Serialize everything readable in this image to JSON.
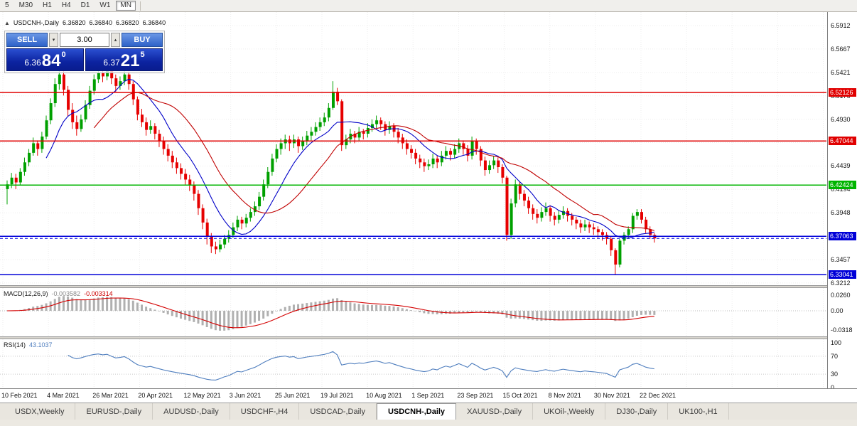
{
  "toolbar": {
    "timeframes": [
      {
        "label": "5",
        "active": false
      },
      {
        "label": "M30",
        "active": false
      },
      {
        "label": "H1",
        "active": false
      },
      {
        "label": "H4",
        "active": false
      },
      {
        "label": "D1",
        "active": false
      },
      {
        "label": "W1",
        "active": false
      },
      {
        "label": "MN",
        "active": true
      }
    ]
  },
  "chart": {
    "info_bar": {
      "symbol": "USDCNH-,Daily",
      "open": "6.36820",
      "high": "6.36840",
      "low": "6.36820",
      "close": "6.36840"
    },
    "trade_panel": {
      "sell_label": "SELL",
      "buy_label": "BUY",
      "lot_value": "3.00",
      "spin_up": "▴",
      "spin_down": "▾",
      "sell_price": {
        "prefix": "6.36",
        "big": "84",
        "sup": "0"
      },
      "buy_price": {
        "prefix": "6.37",
        "big": "21",
        "sup": "5"
      }
    },
    "price_axis_labels": [
      "6.5912",
      "6.5667",
      "6.5421",
      "6.5176",
      "6.4930",
      "6.4685",
      "6.4439",
      "6.4194",
      "6.3948",
      "6.3703",
      "6.3457",
      "6.3212"
    ],
    "level_badges": [
      {
        "label": "6.52126",
        "price": 6.5212,
        "color": "#e00000"
      },
      {
        "label": "6.47044",
        "price": 6.4704,
        "color": "#e00000"
      },
      {
        "label": "6.42424",
        "price": 6.4242,
        "color": "#00b400"
      },
      {
        "label": "6.37063",
        "price": 6.3706,
        "color": "#0000d8"
      },
      {
        "label": "6.33041",
        "price": 6.3304,
        "color": "#0000d8"
      }
    ],
    "date_axis_labels": [
      "10 Feb 2021",
      "4 Mar 2021",
      "26 Mar 2021",
      "20 Apr 2021",
      "12 May 2021",
      "3 Jun 2021",
      "25 Jun 2021",
      "19 Jul 2021",
      "10 Aug 2021",
      "1 Sep 2021",
      "23 Sep 2021",
      "15 Oct 2021",
      "8 Nov 2021",
      "30 Nov 2021",
      "22 Dec 2021"
    ]
  },
  "indicators": {
    "macd": {
      "name": "MACD(12,26,9)",
      "value_main": "-0.003582",
      "value_signal": "-0.003314",
      "axis_labels": [
        "0.0260",
        "0.00",
        "-0.0318"
      ]
    },
    "rsi": {
      "name": "RSI(14)",
      "value": "43.1037",
      "axis_labels": [
        "100",
        "70",
        "30",
        "0"
      ],
      "levels": [
        70,
        30
      ]
    }
  },
  "tabs": [
    {
      "label": "USDX,Weekly",
      "active": false
    },
    {
      "label": "EURUSD-,Daily",
      "active": false
    },
    {
      "label": "AUDUSD-,Daily",
      "active": false
    },
    {
      "label": "USDCHF-,H4",
      "active": false
    },
    {
      "label": "USDCAD-,Daily",
      "active": false
    },
    {
      "label": "USDCNH-,Daily",
      "active": true
    },
    {
      "label": "XAUUSD-,Daily",
      "active": false
    },
    {
      "label": "UKOil-,Weekly",
      "active": false
    },
    {
      "label": "DJ30-,Daily",
      "active": false
    },
    {
      "label": "UK100-,H1",
      "active": false
    }
  ],
  "colors": {
    "candle_up": "#00a000",
    "candle_down": "#e60000",
    "ma_fast": "#0000c8",
    "ma_slow": "#c00000",
    "macd_histogram": "#b0b0b0",
    "macd_signal": "#d40000",
    "rsi_line": "#4f7ebe",
    "bid_line": "#0000e0",
    "level_red": "#e00000",
    "level_green": "#00b400",
    "level_blue": "#0000d8",
    "trade_button_blue": "#2e62c8",
    "trade_price_bg": "#0c23a0"
  },
  "chart_data": {
    "type": "candlestick",
    "symbol": "USDCNH",
    "timeframe": "Daily",
    "title": "USDCNH-,Daily",
    "y_axis_ticks": [
      6.5912,
      6.5667,
      6.5421,
      6.5176,
      6.493,
      6.4685,
      6.4439,
      6.4194,
      6.3948,
      6.3703,
      6.3457,
      6.3212
    ],
    "x_tick_labels": [
      "10 Feb 2021",
      "4 Mar 2021",
      "26 Mar 2021",
      "20 Apr 2021",
      "12 May 2021",
      "3 Jun 2021",
      "25 Jun 2021",
      "19 Jul 2021",
      "10 Aug 2021",
      "1 Sep 2021",
      "23 Sep 2021",
      "15 Oct 2021",
      "8 Nov 2021",
      "30 Nov 2021",
      "22 Dec 2021"
    ],
    "horizontal_levels": [
      {
        "price": 6.5212,
        "color": "#e00000"
      },
      {
        "price": 6.4704,
        "color": "#e00000"
      },
      {
        "price": 6.4242,
        "color": "#00b400"
      },
      {
        "price": 6.3706,
        "color": "#0000d8"
      },
      {
        "price": 6.3304,
        "color": "#0000d8"
      }
    ],
    "bid": 6.3684,
    "ask": 6.3721,
    "last_bar": {
      "open": 6.3682,
      "high": 6.3684,
      "low": 6.3682,
      "close": 6.3684
    },
    "overlays": [
      {
        "name": "ma-fast",
        "type": "sma",
        "period": 10,
        "color": "#0000c8"
      },
      {
        "name": "ma-slow",
        "type": "sma",
        "period": 21,
        "color": "#c00000"
      }
    ],
    "subcharts": [
      {
        "type": "macd",
        "params": [
          12,
          26,
          9
        ],
        "current_main": -0.003582,
        "current_signal": -0.003314,
        "axis": [
          0.026,
          0.0,
          -0.0318
        ]
      },
      {
        "type": "rsi",
        "period": 14,
        "current": 43.1037,
        "levels": [
          70,
          30
        ],
        "axis": [
          100,
          70,
          30,
          0
        ]
      }
    ],
    "candles_ohlc": [
      [
        6.42,
        6.429,
        6.404,
        6.425
      ],
      [
        6.425,
        6.437,
        6.421,
        6.432
      ],
      [
        6.432,
        6.436,
        6.42,
        6.427
      ],
      [
        6.427,
        6.442,
        6.424,
        6.438
      ],
      [
        6.438,
        6.453,
        6.434,
        6.448
      ],
      [
        6.448,
        6.462,
        6.444,
        6.458
      ],
      [
        6.458,
        6.474,
        6.455,
        6.468
      ],
      [
        6.468,
        6.471,
        6.455,
        6.462
      ],
      [
        6.462,
        6.48,
        6.458,
        6.475
      ],
      [
        6.475,
        6.497,
        6.472,
        6.492
      ],
      [
        6.492,
        6.515,
        6.488,
        6.51
      ],
      [
        6.51,
        6.536,
        6.506,
        6.53
      ],
      [
        6.53,
        6.5435,
        6.524,
        6.54
      ],
      [
        6.54,
        6.5445,
        6.518,
        6.524
      ],
      [
        6.524,
        6.528,
        6.496,
        6.503
      ],
      [
        6.503,
        6.51,
        6.483,
        6.49
      ],
      [
        6.49,
        6.497,
        6.476,
        6.483
      ],
      [
        6.483,
        6.498,
        6.48,
        6.493
      ],
      [
        6.493,
        6.513,
        6.49,
        6.508
      ],
      [
        6.508,
        6.528,
        6.504,
        6.523
      ],
      [
        6.523,
        6.54,
        6.519,
        6.535
      ],
      [
        6.535,
        6.547,
        6.531,
        6.542
      ],
      [
        6.542,
        6.545,
        6.532,
        6.538
      ],
      [
        6.538,
        6.549,
        6.534,
        6.545
      ],
      [
        6.545,
        6.547,
        6.53,
        6.536
      ],
      [
        6.536,
        6.54,
        6.522,
        6.528
      ],
      [
        6.528,
        6.538,
        6.524,
        6.533
      ],
      [
        6.533,
        6.545,
        6.529,
        6.54
      ],
      [
        6.54,
        6.543,
        6.524,
        6.53
      ],
      [
        6.53,
        6.533,
        6.508,
        6.514
      ],
      [
        6.514,
        6.517,
        6.492,
        6.498
      ],
      [
        6.498,
        6.504,
        6.485,
        6.49
      ],
      [
        6.49,
        6.495,
        6.476,
        6.482
      ],
      [
        6.482,
        6.492,
        6.478,
        6.486
      ],
      [
        6.486,
        6.489,
        6.472,
        6.478
      ],
      [
        6.478,
        6.482,
        6.464,
        6.47
      ],
      [
        6.47,
        6.475,
        6.456,
        6.462
      ],
      [
        6.462,
        6.467,
        6.449,
        6.455
      ],
      [
        6.455,
        6.46,
        6.442,
        6.448
      ],
      [
        6.448,
        6.453,
        6.436,
        6.442
      ],
      [
        6.442,
        6.447,
        6.43,
        6.436
      ],
      [
        6.436,
        6.441,
        6.424,
        6.43
      ],
      [
        6.43,
        6.435,
        6.418,
        6.424
      ],
      [
        6.424,
        6.428,
        6.408,
        6.415
      ],
      [
        6.415,
        6.419,
        6.393,
        6.4
      ],
      [
        6.4,
        6.404,
        6.378,
        6.385
      ],
      [
        6.385,
        6.389,
        6.362,
        6.37
      ],
      [
        6.37,
        6.374,
        6.353,
        6.36
      ],
      [
        6.36,
        6.365,
        6.352,
        6.357
      ],
      [
        6.357,
        6.367,
        6.354,
        6.362
      ],
      [
        6.362,
        6.372,
        6.358,
        6.368
      ],
      [
        6.368,
        6.377,
        6.364,
        6.372
      ],
      [
        6.372,
        6.385,
        6.369,
        6.38
      ],
      [
        6.38,
        6.392,
        6.376,
        6.388
      ],
      [
        6.388,
        6.391,
        6.378,
        6.384
      ],
      [
        6.384,
        6.394,
        6.38,
        6.39
      ],
      [
        6.39,
        6.4,
        6.386,
        6.396
      ],
      [
        6.396,
        6.407,
        6.392,
        6.402
      ],
      [
        6.402,
        6.417,
        6.398,
        6.412
      ],
      [
        6.412,
        6.43,
        6.408,
        6.425
      ],
      [
        6.425,
        6.443,
        6.421,
        6.438
      ],
      [
        6.438,
        6.457,
        6.434,
        6.452
      ],
      [
        6.452,
        6.467,
        6.448,
        6.462
      ],
      [
        6.462,
        6.473,
        6.456,
        6.468
      ],
      [
        6.468,
        6.477,
        6.462,
        6.472
      ],
      [
        6.472,
        6.476,
        6.46,
        6.468
      ],
      [
        6.468,
        6.477,
        6.463,
        6.472
      ],
      [
        6.472,
        6.475,
        6.458,
        6.465
      ],
      [
        6.465,
        6.475,
        6.461,
        6.47
      ],
      [
        6.47,
        6.481,
        6.466,
        6.476
      ],
      [
        6.476,
        6.485,
        6.471,
        6.48
      ],
      [
        6.48,
        6.49,
        6.476,
        6.485
      ],
      [
        6.485,
        6.495,
        6.481,
        6.49
      ],
      [
        6.49,
        6.5,
        6.486,
        6.495
      ],
      [
        6.495,
        6.51,
        6.491,
        6.505
      ],
      [
        6.505,
        6.533,
        6.503,
        6.522
      ],
      [
        6.522,
        6.526,
        6.508,
        6.512
      ],
      [
        6.512,
        6.514,
        6.46,
        6.466
      ],
      [
        6.466,
        6.477,
        6.462,
        6.472
      ],
      [
        6.472,
        6.483,
        6.468,
        6.478
      ],
      [
        6.478,
        6.481,
        6.468,
        6.474
      ],
      [
        6.474,
        6.485,
        6.47,
        6.48
      ],
      [
        6.48,
        6.483,
        6.472,
        6.478
      ],
      [
        6.478,
        6.489,
        6.474,
        6.484
      ],
      [
        6.484,
        6.493,
        6.48,
        6.488
      ],
      [
        6.488,
        6.497,
        6.484,
        6.492
      ],
      [
        6.492,
        6.495,
        6.482,
        6.488
      ],
      [
        6.488,
        6.491,
        6.476,
        6.482
      ],
      [
        6.482,
        6.491,
        6.478,
        6.486
      ],
      [
        6.486,
        6.489,
        6.474,
        6.48
      ],
      [
        6.48,
        6.484,
        6.468,
        6.474
      ],
      [
        6.474,
        6.478,
        6.462,
        6.468
      ],
      [
        6.468,
        6.472,
        6.456,
        6.462
      ],
      [
        6.462,
        6.466,
        6.452,
        6.458
      ],
      [
        6.458,
        6.462,
        6.446,
        6.452
      ],
      [
        6.452,
        6.456,
        6.442,
        6.448
      ],
      [
        6.448,
        6.452,
        6.438,
        6.444
      ],
      [
        6.444,
        6.451,
        6.44,
        6.446
      ],
      [
        6.446,
        6.457,
        6.442,
        6.452
      ],
      [
        6.452,
        6.455,
        6.442,
        6.448
      ],
      [
        6.448,
        6.46,
        6.444,
        6.455
      ],
      [
        6.455,
        6.465,
        6.451,
        6.46
      ],
      [
        6.46,
        6.463,
        6.45,
        6.456
      ],
      [
        6.456,
        6.467,
        6.452,
        6.462
      ],
      [
        6.462,
        6.473,
        6.458,
        6.468
      ],
      [
        6.468,
        6.471,
        6.456,
        6.462
      ],
      [
        6.462,
        6.466,
        6.449,
        6.455
      ],
      [
        6.455,
        6.475,
        6.451,
        6.47
      ],
      [
        6.47,
        6.473,
        6.456,
        6.462
      ],
      [
        6.462,
        6.465,
        6.444,
        6.45
      ],
      [
        6.45,
        6.454,
        6.434,
        6.44
      ],
      [
        6.44,
        6.45,
        6.436,
        6.445
      ],
      [
        6.445,
        6.455,
        6.441,
        6.45
      ],
      [
        6.45,
        6.453,
        6.437,
        6.443
      ],
      [
        6.443,
        6.446,
        6.426,
        6.432
      ],
      [
        6.432,
        6.434,
        6.366,
        6.372
      ],
      [
        6.372,
        6.41,
        6.368,
        6.405
      ],
      [
        6.405,
        6.43,
        6.401,
        6.425
      ],
      [
        6.425,
        6.428,
        6.409,
        6.415
      ],
      [
        6.415,
        6.419,
        6.402,
        6.408
      ],
      [
        6.408,
        6.412,
        6.394,
        6.4
      ],
      [
        6.4,
        6.404,
        6.388,
        6.394
      ],
      [
        6.394,
        6.399,
        6.384,
        6.39
      ],
      [
        6.39,
        6.401,
        6.386,
        6.396
      ],
      [
        6.396,
        6.406,
        6.392,
        6.4
      ],
      [
        6.4,
        6.403,
        6.386,
        6.392
      ],
      [
        6.392,
        6.396,
        6.382,
        6.388
      ],
      [
        6.388,
        6.398,
        6.384,
        6.393
      ],
      [
        6.393,
        6.402,
        6.389,
        6.397
      ],
      [
        6.397,
        6.4,
        6.386,
        6.392
      ],
      [
        6.392,
        6.395,
        6.382,
        6.388
      ],
      [
        6.388,
        6.391,
        6.378,
        6.384
      ],
      [
        6.384,
        6.388,
        6.374,
        6.38
      ],
      [
        6.38,
        6.388,
        6.376,
        6.383
      ],
      [
        6.383,
        6.386,
        6.374,
        6.38
      ],
      [
        6.38,
        6.384,
        6.372,
        6.378
      ],
      [
        6.378,
        6.381,
        6.369,
        6.375
      ],
      [
        6.375,
        6.378,
        6.366,
        6.372
      ],
      [
        6.372,
        6.375,
        6.362,
        6.368
      ],
      [
        6.368,
        6.371,
        6.35,
        6.356
      ],
      [
        6.356,
        6.358,
        6.3304,
        6.341
      ],
      [
        6.341,
        6.368,
        6.338,
        6.366
      ],
      [
        6.366,
        6.375,
        6.362,
        6.372
      ],
      [
        6.372,
        6.381,
        6.368,
        6.378
      ],
      [
        6.378,
        6.395,
        6.374,
        6.392
      ],
      [
        6.392,
        6.399,
        6.388,
        6.396
      ],
      [
        6.396,
        6.399,
        6.384,
        6.388
      ],
      [
        6.388,
        6.391,
        6.374,
        6.378
      ],
      [
        6.378,
        6.381,
        6.368,
        6.372
      ],
      [
        6.372,
        6.374,
        6.364,
        6.3684
      ]
    ]
  }
}
